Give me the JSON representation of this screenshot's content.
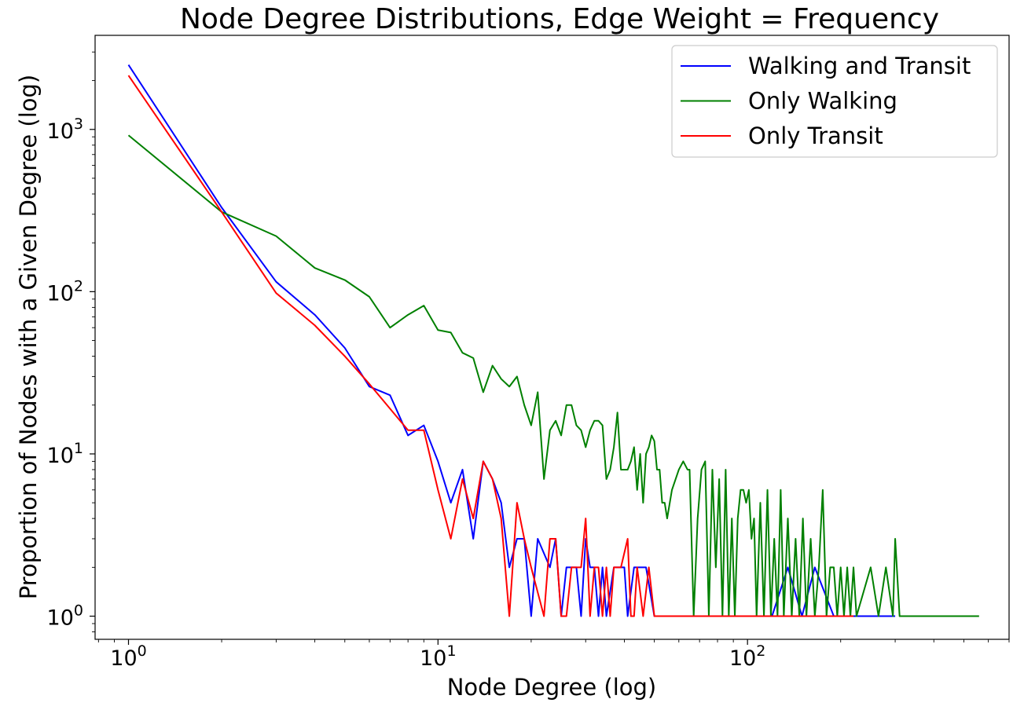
{
  "chart_data": {
    "type": "line",
    "title": "Node Degree Distributions, Edge Weight = Frequency",
    "xlabel": "Node Degree (log)",
    "ylabel": "Proportion of Nodes with a Given Degree (log)",
    "xscale": "log",
    "yscale": "log",
    "xlim": [
      0.78,
      700
    ],
    "ylim": [
      0.72,
      3800
    ],
    "x_ticks": [
      {
        "value": 1,
        "base": "10",
        "exp": "0"
      },
      {
        "value": 10,
        "base": "10",
        "exp": "1"
      },
      {
        "value": 100,
        "base": "10",
        "exp": "2"
      }
    ],
    "y_ticks": [
      {
        "value": 1,
        "base": "10",
        "exp": "0"
      },
      {
        "value": 10,
        "base": "10",
        "exp": "1"
      },
      {
        "value": 100,
        "base": "10",
        "exp": "2"
      },
      {
        "value": 1000,
        "base": "10",
        "exp": "3"
      }
    ],
    "grid": false,
    "legend_position": "top-right",
    "series": [
      {
        "name": "Walking and Transit",
        "color": "#0000ff",
        "points": [
          [
            1,
            2500
          ],
          [
            2,
            330
          ],
          [
            3,
            115
          ],
          [
            4,
            72
          ],
          [
            5,
            45
          ],
          [
            6,
            26
          ],
          [
            7,
            23
          ],
          [
            8,
            13
          ],
          [
            9,
            15
          ],
          [
            10,
            9
          ],
          [
            11,
            5
          ],
          [
            12,
            8
          ],
          [
            13,
            3
          ],
          [
            14,
            9
          ],
          [
            15,
            7
          ],
          [
            16,
            5
          ],
          [
            17,
            2
          ],
          [
            18,
            3
          ],
          [
            19,
            3
          ],
          [
            20,
            1
          ],
          [
            21,
            3
          ],
          [
            23,
            2
          ],
          [
            24,
            3
          ],
          [
            25,
            1
          ],
          [
            26,
            2
          ],
          [
            28,
            2
          ],
          [
            29,
            1
          ],
          [
            30,
            3
          ],
          [
            31,
            2
          ],
          [
            32,
            2
          ],
          [
            33,
            1
          ],
          [
            34,
            2
          ],
          [
            35,
            1
          ],
          [
            37,
            2
          ],
          [
            40,
            2
          ],
          [
            41,
            1
          ],
          [
            43,
            2
          ],
          [
            45,
            2
          ],
          [
            47,
            2
          ],
          [
            50,
            1
          ],
          [
            53,
            1
          ],
          [
            60,
            1
          ],
          [
            80,
            1
          ],
          [
            100,
            1
          ],
          [
            120,
            1
          ],
          [
            135,
            2
          ],
          [
            150,
            1
          ],
          [
            165,
            2
          ],
          [
            190,
            1
          ],
          [
            300,
            1
          ]
        ]
      },
      {
        "name": "Only Walking",
        "color": "#008000",
        "points": [
          [
            1,
            920
          ],
          [
            2,
            310
          ],
          [
            3,
            220
          ],
          [
            4,
            140
          ],
          [
            5,
            118
          ],
          [
            6,
            93
          ],
          [
            7,
            60
          ],
          [
            8,
            72
          ],
          [
            9,
            82
          ],
          [
            10,
            58
          ],
          [
            11,
            56
          ],
          [
            12,
            42
          ],
          [
            13,
            39
          ],
          [
            14,
            24
          ],
          [
            15,
            35
          ],
          [
            16,
            29
          ],
          [
            17,
            26
          ],
          [
            18,
            30
          ],
          [
            19,
            20
          ],
          [
            20,
            15
          ],
          [
            21,
            24
          ],
          [
            22,
            7
          ],
          [
            23,
            14
          ],
          [
            24,
            16
          ],
          [
            25,
            13
          ],
          [
            26,
            20
          ],
          [
            27,
            20
          ],
          [
            28,
            15
          ],
          [
            29,
            14
          ],
          [
            30,
            11
          ],
          [
            31,
            14
          ],
          [
            32,
            16
          ],
          [
            33,
            16
          ],
          [
            34,
            15
          ],
          [
            35,
            7
          ],
          [
            36,
            8
          ],
          [
            37,
            11
          ],
          [
            38,
            18
          ],
          [
            39,
            8
          ],
          [
            40,
            8
          ],
          [
            41,
            8
          ],
          [
            42,
            9
          ],
          [
            43,
            11
          ],
          [
            44,
            6
          ],
          [
            45,
            10
          ],
          [
            46,
            5
          ],
          [
            47,
            10
          ],
          [
            48,
            11
          ],
          [
            49,
            13
          ],
          [
            50,
            12
          ],
          [
            51,
            8
          ],
          [
            52,
            8
          ],
          [
            53,
            5
          ],
          [
            54,
            5
          ],
          [
            55,
            4
          ],
          [
            57,
            6
          ],
          [
            60,
            8
          ],
          [
            62,
            9
          ],
          [
            64,
            8
          ],
          [
            65,
            8
          ],
          [
            67,
            1
          ],
          [
            69,
            4
          ],
          [
            71,
            8
          ],
          [
            73,
            9
          ],
          [
            75,
            1
          ],
          [
            77,
            8
          ],
          [
            79,
            2
          ],
          [
            81,
            7
          ],
          [
            83,
            1
          ],
          [
            85,
            8
          ],
          [
            87,
            1
          ],
          [
            89,
            4
          ],
          [
            91,
            1
          ],
          [
            93,
            4
          ],
          [
            95,
            6
          ],
          [
            97,
            6
          ],
          [
            99,
            5
          ],
          [
            101,
            6
          ],
          [
            103,
            3
          ],
          [
            105,
            4
          ],
          [
            107,
            1
          ],
          [
            110,
            5
          ],
          [
            113,
            1
          ],
          [
            116,
            6
          ],
          [
            119,
            1
          ],
          [
            122,
            3
          ],
          [
            125,
            1
          ],
          [
            128,
            6
          ],
          [
            131,
            1
          ],
          [
            135,
            4
          ],
          [
            139,
            1
          ],
          [
            143,
            3
          ],
          [
            147,
            1
          ],
          [
            151,
            4
          ],
          [
            155,
            1
          ],
          [
            160,
            3
          ],
          [
            165,
            1
          ],
          [
            170,
            2
          ],
          [
            175,
            6
          ],
          [
            180,
            1
          ],
          [
            185,
            2
          ],
          [
            190,
            2
          ],
          [
            195,
            1
          ],
          [
            200,
            2
          ],
          [
            205,
            1
          ],
          [
            210,
            2
          ],
          [
            215,
            1
          ],
          [
            220,
            2
          ],
          [
            225,
            1
          ],
          [
            250,
            2
          ],
          [
            265,
            1
          ],
          [
            280,
            2
          ],
          [
            295,
            1
          ],
          [
            300,
            3
          ],
          [
            310,
            1
          ],
          [
            560,
            1
          ]
        ]
      },
      {
        "name": "Only Transit",
        "color": "#ff0000",
        "points": [
          [
            1,
            2150
          ],
          [
            2,
            310
          ],
          [
            3,
            98
          ],
          [
            4,
            62
          ],
          [
            5,
            40
          ],
          [
            6,
            27
          ],
          [
            7,
            19
          ],
          [
            8,
            14
          ],
          [
            9,
            14
          ],
          [
            10,
            6
          ],
          [
            11,
            3
          ],
          [
            12,
            7
          ],
          [
            13,
            4
          ],
          [
            14,
            9
          ],
          [
            15,
            7
          ],
          [
            16,
            4
          ],
          [
            17,
            1
          ],
          [
            18,
            5
          ],
          [
            19,
            3
          ],
          [
            20,
            2
          ],
          [
            22,
            1
          ],
          [
            23,
            3
          ],
          [
            24,
            3
          ],
          [
            25,
            1
          ],
          [
            26,
            1
          ],
          [
            27,
            2
          ],
          [
            28,
            2
          ],
          [
            29,
            2
          ],
          [
            30,
            4
          ],
          [
            31,
            1
          ],
          [
            32,
            2
          ],
          [
            33,
            2
          ],
          [
            34,
            1
          ],
          [
            35,
            2
          ],
          [
            36,
            1
          ],
          [
            37,
            2
          ],
          [
            39,
            2
          ],
          [
            41,
            3
          ],
          [
            42,
            1
          ],
          [
            43,
            1
          ],
          [
            44,
            2
          ],
          [
            46,
            1
          ],
          [
            48,
            2
          ],
          [
            50,
            1
          ],
          [
            52,
            1
          ],
          [
            60,
            1
          ],
          [
            80,
            1
          ],
          [
            100,
            1
          ],
          [
            150,
            1
          ],
          [
            220,
            1
          ]
        ]
      }
    ]
  }
}
